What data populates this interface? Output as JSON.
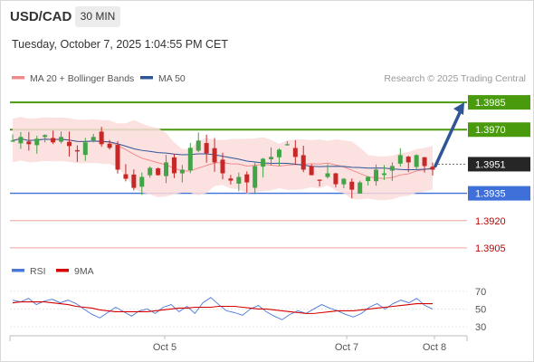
{
  "header": {
    "symbol": "USD/CAD",
    "timeframe": "30 MIN",
    "datetime": "Tuesday, October 7, 2025 1:04:55 PM CET"
  },
  "legend": {
    "ma20": "MA 20 + Bollinger Bands",
    "ma50": "MA 50",
    "credit": "Research © 2025 Trading Central",
    "rsi": "RSI",
    "ma9": "9MA"
  },
  "colors": {
    "up_candle": "#43a447",
    "down_candle": "#c62828",
    "green_level": "#4a9a0e",
    "blue_level": "#3f6fd8",
    "red_level": "#c00000",
    "ma50": "#2f5597",
    "bollinger_fill": "#fbdcdc",
    "ma20": "#f08a8a",
    "arrow": "#2f5597",
    "rsi_line": "#4a78d8",
    "ma9_line": "#d60000"
  },
  "chart_data": [
    {
      "type": "candlestick",
      "price_range": [
        1.3897,
        1.3994
      ],
      "x_labels": [
        "Oct 5",
        "Oct 7",
        "Oct 8"
      ],
      "current_price": "1.3951",
      "levels": [
        {
          "label": "1.3985",
          "value": 1.3985,
          "kind": "resistance"
        },
        {
          "label": "1.3970",
          "value": 1.397,
          "kind": "resistance"
        },
        {
          "label": "1.3951",
          "value": 1.3951,
          "kind": "current"
        },
        {
          "label": "1.3935",
          "value": 1.3935,
          "kind": "pivot"
        },
        {
          "label": "1.3920",
          "value": 1.392,
          "kind": "support"
        },
        {
          "label": "1.3905",
          "value": 1.3905,
          "kind": "support"
        }
      ],
      "series": [
        {
          "name": "MA 20 + Bollinger Bands"
        },
        {
          "name": "MA 50"
        }
      ],
      "projection": {
        "from": 1.395,
        "to": 1.3985
      },
      "price_path": [
        1.3964,
        1.3966,
        1.3962,
        1.3965,
        1.3967,
        1.3963,
        1.3966,
        1.3961,
        1.3958,
        1.3963,
        1.3966,
        1.3962,
        1.396,
        1.3948,
        1.3943,
        1.3938,
        1.3944,
        1.3949,
        1.3945,
        1.3952,
        1.3946,
        1.3948,
        1.396,
        1.3964,
        1.3957,
        1.3952,
        1.3946,
        1.3942,
        1.3944,
        1.3941,
        1.395,
        1.3954,
        1.3955,
        1.3959,
        1.3962,
        1.3955,
        1.3948,
        1.3945,
        1.3942,
        1.3946,
        1.394,
        1.3943,
        1.3937,
        1.3941,
        1.3944,
        1.3948,
        1.3946,
        1.395,
        1.3956,
        1.3952,
        1.3956,
        1.395,
        1.3948
      ]
    },
    {
      "type": "line",
      "title": "RSI",
      "y_ticks": [
        70,
        50,
        30
      ],
      "ylim": [
        25,
        80
      ],
      "series": [
        {
          "name": "RSI",
          "values": [
            60,
            58,
            62,
            55,
            59,
            61,
            57,
            60,
            56,
            50,
            44,
            40,
            46,
            52,
            47,
            42,
            48,
            50,
            45,
            52,
            55,
            47,
            53,
            45,
            57,
            63,
            55,
            48,
            46,
            43,
            50,
            54,
            47,
            42,
            38,
            44,
            48,
            45,
            50,
            55,
            51,
            48,
            44,
            41,
            45,
            52,
            56,
            50,
            56,
            60,
            57,
            62,
            54,
            50
          ]
        },
        {
          "name": "9MA",
          "values": [
            57,
            58,
            58,
            58,
            58,
            57,
            56,
            55,
            53,
            52,
            51,
            49,
            48,
            47,
            47,
            47,
            47,
            47,
            48,
            49,
            50,
            51,
            51,
            52,
            52,
            52,
            53,
            53,
            53,
            52,
            51,
            50,
            50,
            49,
            48,
            47,
            46,
            45,
            45,
            46,
            47,
            48,
            48,
            48,
            49,
            50,
            51,
            52,
            53,
            54,
            55,
            56,
            56,
            56
          ]
        }
      ]
    }
  ]
}
